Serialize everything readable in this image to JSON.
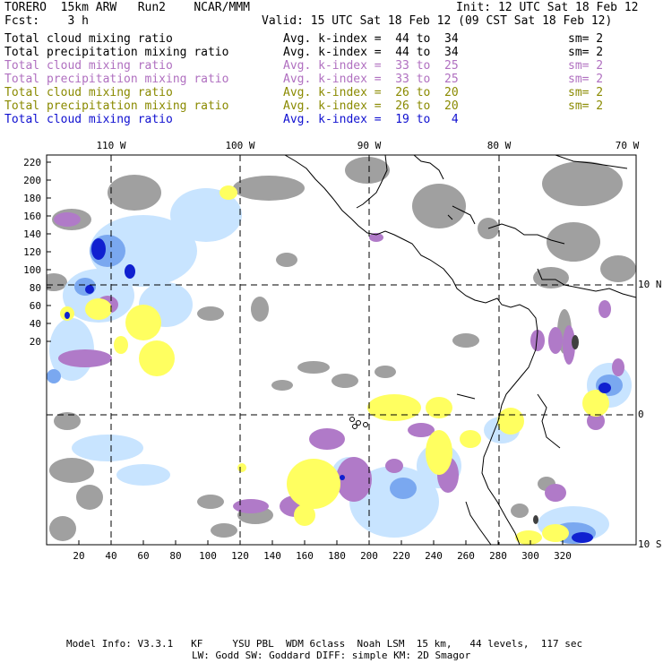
{
  "header": {
    "model": "TORERO  15km ARW   Run2    NCAR/MMM",
    "init": "Init: 12 UTC Sat 18 Feb 12",
    "fcst": "Fcst:    3 h",
    "valid": "Valid: 15 UTC Sat 18 Feb 12 (09 CST Sat 18 Feb 12)"
  },
  "legend": [
    {
      "label": "Total cloud mixing ratio",
      "kidx": "Avg. k-index =  44 to  34",
      "sm": "sm= 2",
      "color": "#000000"
    },
    {
      "label": "Total precipitation mixing ratio",
      "kidx": "Avg. k-index =  44 to  34",
      "sm": "sm= 2",
      "color": "#000000"
    },
    {
      "label": "Total cloud mixing ratio",
      "kidx": "Avg. k-index =  33 to  25",
      "sm": "sm= 2",
      "color": "#b070c0"
    },
    {
      "label": "Total precipitation mixing ratio",
      "kidx": "Avg. k-index =  33 to  25",
      "sm": "sm= 2",
      "color": "#b070c0"
    },
    {
      "label": "Total cloud mixing ratio",
      "kidx": "Avg. k-index =  26 to  20",
      "sm": "sm= 2",
      "color": "#8a8a00"
    },
    {
      "label": "Total precipitation mixing ratio",
      "kidx": "Avg. k-index =  26 to  20",
      "sm": "sm= 2",
      "color": "#8a8a00"
    },
    {
      "label": "Total cloud mixing ratio",
      "kidx": "Avg. k-index =  19 to   4",
      "sm": "",
      "color": "#1010d0"
    }
  ],
  "axes": {
    "top": [
      "110 W",
      "100 W",
      "90 W",
      "80 W",
      "70 W"
    ],
    "right": [
      "10 N",
      "0",
      "10 S"
    ],
    "left": [
      "220",
      "200",
      "180",
      "160",
      "140",
      "120",
      "100",
      "80",
      "60",
      "40",
      "20"
    ],
    "bottom": [
      "20",
      "40",
      "60",
      "80",
      "100",
      "120",
      "140",
      "160",
      "180",
      "200",
      "220",
      "240",
      "260",
      "280",
      "300",
      "320"
    ]
  },
  "colors": {
    "gray": "#a0a0a0",
    "purple": "#b07ac8",
    "yellow": "#ffff60",
    "lightblue": "#c8e4ff",
    "blue": "#7aa8f0",
    "darkblue": "#1020d0"
  },
  "footer": {
    "line1": "Model Info: V3.3.1   KF     YSU PBL  WDM 6class  Noah LSM  15 km,   44 levels,  117 sec",
    "line2": "LW: Godd SW: Goddard DIFF: simple KM: 2D Smagor"
  }
}
